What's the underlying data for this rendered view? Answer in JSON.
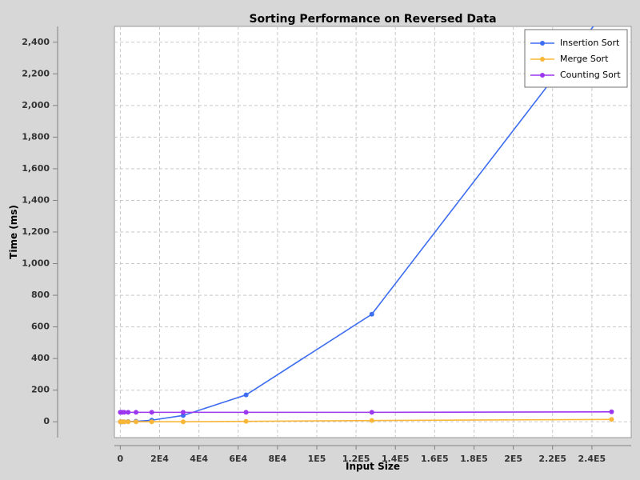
{
  "chart_data": {
    "type": "line",
    "title": "Sorting Performance on Reversed Data",
    "xlabel": "Input Size",
    "ylabel": "Time (ms)",
    "xlim": [
      -3000,
      260000
    ],
    "ylim": [
      -100,
      2500
    ],
    "x_ticks": [
      0,
      20000,
      40000,
      60000,
      80000,
      100000,
      120000,
      140000,
      160000,
      180000,
      200000,
      220000,
      240000
    ],
    "x_tick_labels": [
      "0",
      "2E4",
      "4E4",
      "6E4",
      "8E4",
      "1E5",
      "1.2E5",
      "1.4E5",
      "1.6E5",
      "1.8E5",
      "2E5",
      "2.2E5",
      "2.4E5"
    ],
    "y_ticks": [
      0,
      200,
      400,
      600,
      800,
      1000,
      1200,
      1400,
      1600,
      1800,
      2000,
      2200,
      2400
    ],
    "y_tick_labels": [
      "0",
      "200",
      "400",
      "600",
      "800",
      "1,000",
      "1,200",
      "1,400",
      "1,600",
      "1,800",
      "2,000",
      "2,200",
      "2,400"
    ],
    "grid": true,
    "legend_position": "top-right",
    "series": [
      {
        "name": "Insertion Sort",
        "color": "#3d6df0",
        "x": [
          0,
          500,
          1000,
          2000,
          4000,
          8000,
          16000,
          32000,
          64000,
          128000,
          250000
        ],
        "y": [
          0,
          0,
          0,
          0,
          1,
          3,
          10,
          40,
          170,
          680,
          2650
        ]
      },
      {
        "name": "Merge Sort",
        "color": "#f8b739",
        "x": [
          0,
          500,
          1000,
          2000,
          4000,
          8000,
          16000,
          32000,
          64000,
          128000,
          250000
        ],
        "y": [
          0,
          0,
          0,
          0,
          0,
          0,
          0,
          0,
          3,
          8,
          15
        ]
      },
      {
        "name": "Counting Sort",
        "color": "#9c37f0",
        "x": [
          0,
          500,
          1000,
          2000,
          4000,
          8000,
          16000,
          32000,
          64000,
          128000,
          250000
        ],
        "y": [
          60,
          60,
          60,
          60,
          60,
          60,
          60,
          60,
          60,
          60,
          63
        ]
      }
    ]
  }
}
